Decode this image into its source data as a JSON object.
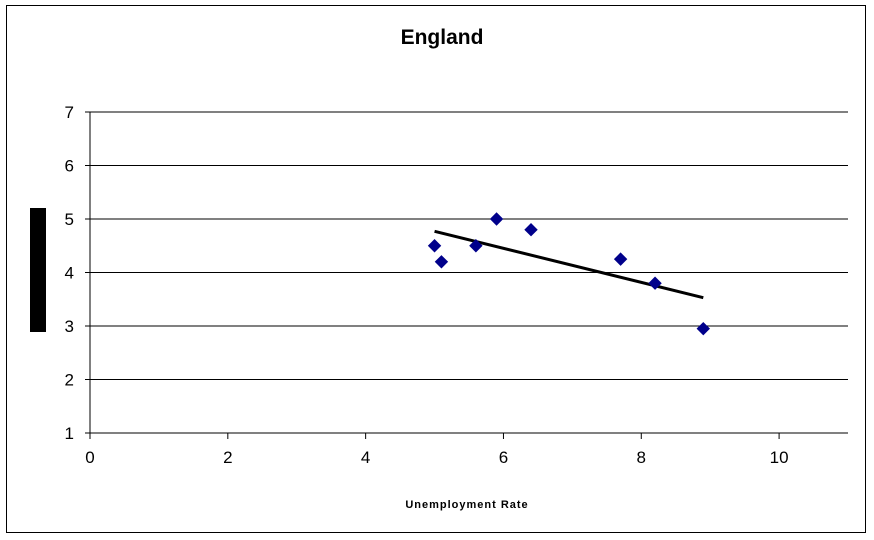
{
  "chart_data": {
    "type": "scatter",
    "title": "England",
    "xlabel": "Unemployment Rate",
    "ylabel": "",
    "xlim": [
      0,
      11
    ],
    "ylim": [
      1,
      7
    ],
    "x_ticks": [
      0,
      2,
      4,
      6,
      8,
      10
    ],
    "y_ticks": [
      1,
      2,
      3,
      4,
      5,
      6,
      7
    ],
    "grid": "horizontal",
    "series": [
      {
        "marker": "diamond",
        "color": "#00008B",
        "points": [
          {
            "x": 5.0,
            "y": 4.5
          },
          {
            "x": 5.1,
            "y": 4.2
          },
          {
            "x": 5.6,
            "y": 4.5
          },
          {
            "x": 5.9,
            "y": 5.0
          },
          {
            "x": 6.4,
            "y": 4.8
          },
          {
            "x": 7.7,
            "y": 4.25
          },
          {
            "x": 8.2,
            "y": 3.8
          },
          {
            "x": 8.9,
            "y": 2.95
          }
        ]
      }
    ],
    "trendline": {
      "color": "#000000",
      "start": {
        "x": 5.0,
        "y": 4.77
      },
      "end": {
        "x": 8.9,
        "y": 3.53
      }
    },
    "redaction_color": "#000000"
  }
}
